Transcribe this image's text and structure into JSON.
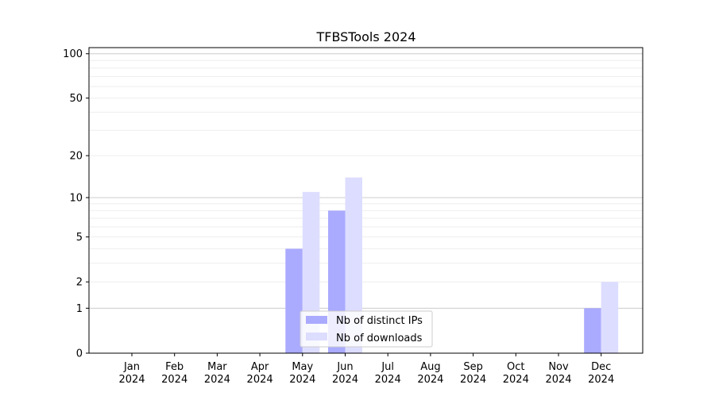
{
  "chart_data": {
    "type": "bar",
    "title": "TFBSTools 2024",
    "categories": [
      "Jan\n2024",
      "Feb\n2024",
      "Mar\n2024",
      "Apr\n2024",
      "May\n2024",
      "Jun\n2024",
      "Jul\n2024",
      "Aug\n2024",
      "Sep\n2024",
      "Oct\n2024",
      "Nov\n2024",
      "Dec\n2024"
    ],
    "series": [
      {
        "name": "Nb of distinct IPs",
        "values": [
          0,
          0,
          0,
          0,
          4,
          8,
          0,
          0,
          0,
          0,
          0,
          1
        ],
        "color": "#aaaaff"
      },
      {
        "name": "Nb of downloads",
        "values": [
          0,
          0,
          0,
          0,
          11,
          14,
          0,
          0,
          0,
          0,
          0,
          2
        ],
        "color": "#ddddff"
      }
    ],
    "y_scale": "symlog",
    "y_ticks": [
      0,
      1,
      2,
      5,
      10,
      20,
      50,
      100
    ],
    "ylim": [
      0,
      110
    ],
    "grid": true,
    "legend_position": "bottom-center"
  }
}
